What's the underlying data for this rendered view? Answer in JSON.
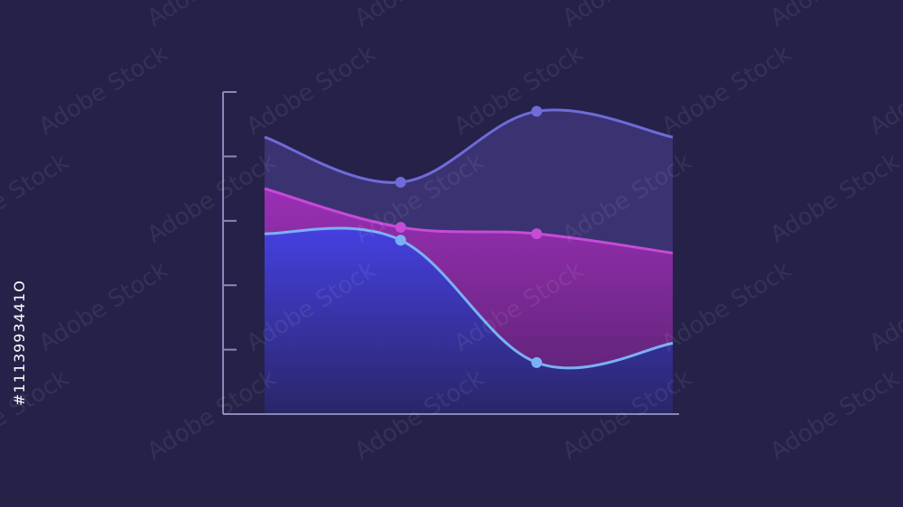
{
  "chart_data": {
    "type": "area",
    "title": "",
    "xlabel": "",
    "ylabel": "",
    "x": [
      0,
      1,
      2,
      3
    ],
    "xlim": [
      0,
      3
    ],
    "ylim": [
      0,
      5
    ],
    "grid": false,
    "series": [
      {
        "key": "top",
        "values": [
          4.3,
          3.6,
          4.7,
          4.3
        ],
        "color": "#6F6BD8",
        "fill": "#3D3474",
        "markers": [
          1,
          2
        ]
      },
      {
        "key": "middle",
        "values": [
          3.5,
          2.9,
          2.8,
          2.5
        ],
        "color": "#C64BD6",
        "fill": "#8A2BA0",
        "markers": [
          1,
          2
        ]
      },
      {
        "key": "bottom",
        "values": [
          2.8,
          2.7,
          0.8,
          1.1
        ],
        "color": "#7BB0F5",
        "fill": "#3E3AD8",
        "markers": [
          1,
          2
        ]
      }
    ],
    "background": "#262149",
    "axis_color": "#8B88B8"
  },
  "watermark": {
    "id_text": "#1113993441O",
    "brand_text": "Adobe Stock"
  }
}
